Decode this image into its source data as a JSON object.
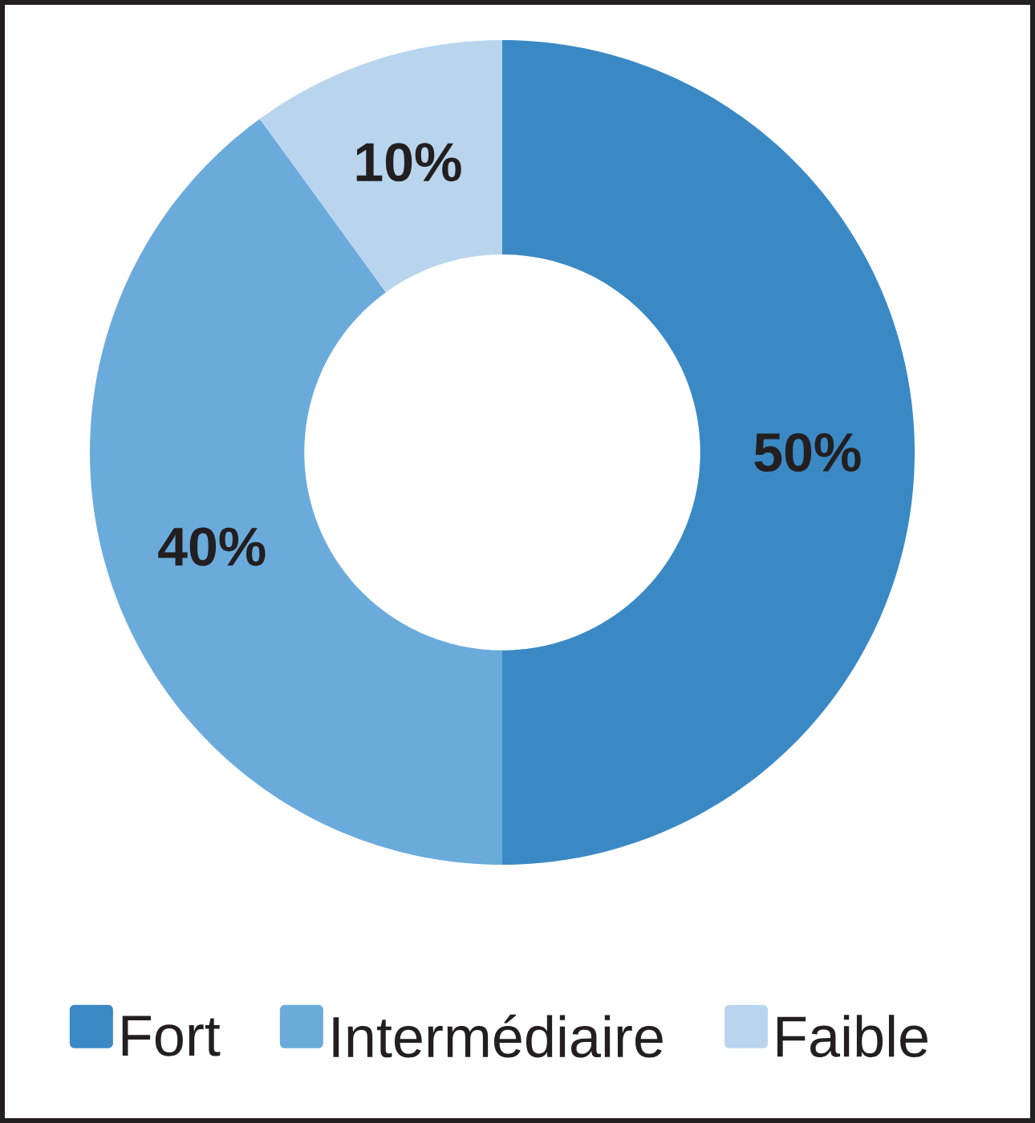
{
  "chart_data": {
    "type": "donut",
    "categories": [
      "Fort",
      "Intermédiaire",
      "Faible"
    ],
    "values": [
      50,
      40,
      10
    ],
    "colors": [
      "#3a89c5",
      "#6aabdc",
      "#b9d5ee"
    ],
    "value_labels": [
      "50%",
      "40%",
      "10%"
    ],
    "legend": "bottom"
  }
}
